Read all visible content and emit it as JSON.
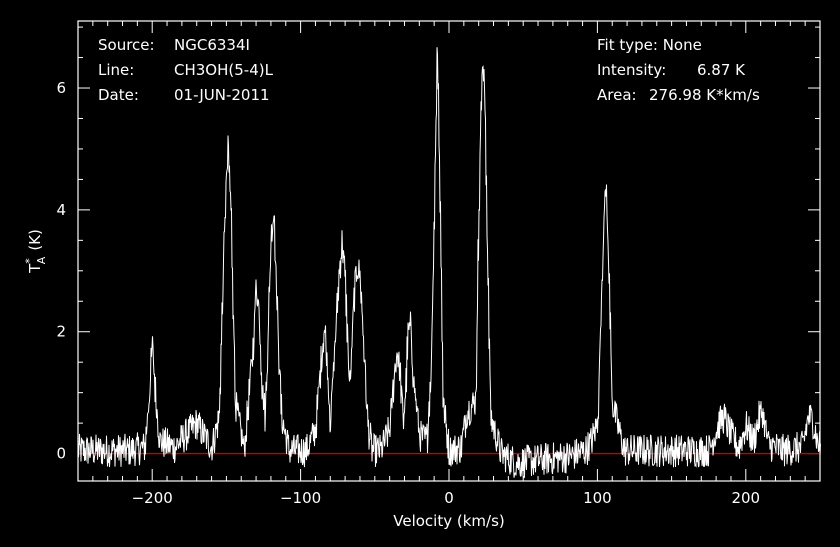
{
  "header": {
    "source_label": "Source:",
    "source_value": "NGC6334I",
    "line_label": "Line:",
    "line_value": "CH3OH(5-4)L",
    "date_label": "Date:",
    "date_value": "01-JUN-2011",
    "fit_label": "Fit type:",
    "fit_value": "None",
    "intensity_label": "Intensity:",
    "intensity_value": "6.87 K",
    "area_label": "Area:",
    "area_value": "276.98 K*km/s"
  },
  "colors": {
    "background": "#000000",
    "axes": "#ffffff",
    "spectrum": "#ffffff",
    "baseline": "#cc0000"
  },
  "chart_data": {
    "type": "line",
    "xlabel": "Velocity (km/s)",
    "ylabel_main": "T",
    "ylabel_sup": "*",
    "ylabel_sub": "A",
    "ylabel_unit": "(K)",
    "xlim": [
      -250,
      250
    ],
    "ylim": [
      -0.45,
      7.1
    ],
    "xticks": [
      -200,
      -100,
      0,
      100,
      200
    ],
    "xtick_labels": [
      "−200",
      "−100",
      "0",
      "100",
      "200"
    ],
    "yticks": [
      0,
      2,
      4,
      6
    ],
    "ytick_labels": [
      "0",
      "2",
      "4",
      "6"
    ],
    "baseline_y": 0,
    "series": [
      {
        "x": [
          -250,
          -215,
          -205,
          -202,
          -200,
          -198,
          -195,
          -185,
          -172,
          -170,
          -168,
          -160,
          -155,
          -151,
          -149,
          -147,
          -144,
          -138,
          -132,
          -130,
          -128,
          -126,
          -124,
          -122,
          -120,
          -118,
          -116,
          -113,
          -108,
          -96,
          -90,
          -86,
          -84,
          -82,
          -80,
          -77,
          -74,
          -72,
          -70,
          -67,
          -64,
          -62,
          -60,
          -58,
          -55,
          -52,
          -46,
          -40,
          -37,
          -35,
          -33,
          -31,
          -29,
          -28,
          -26,
          -24,
          -20,
          -15,
          -12,
          -10,
          -8,
          -6,
          -4,
          0,
          8,
          12,
          16,
          18,
          20,
          22,
          24,
          26,
          28,
          35,
          45,
          80,
          92,
          96,
          100,
          103,
          105,
          107,
          110,
          118,
          175,
          182,
          185,
          190,
          195,
          200,
          205,
          209,
          211,
          215,
          225,
          238,
          242,
          245,
          248,
          250
        ],
        "y": [
          0.05,
          0.05,
          0.1,
          1.0,
          1.8,
          1.0,
          0.2,
          0.1,
          0.45,
          0.5,
          0.4,
          0.1,
          0.6,
          4.0,
          5.0,
          4.0,
          0.8,
          0.05,
          1.8,
          2.8,
          2.3,
          1.1,
          0.6,
          2.0,
          3.6,
          4.0,
          2.4,
          0.6,
          0.05,
          0.05,
          0.4,
          1.6,
          2.1,
          1.4,
          0.5,
          1.8,
          3.0,
          3.5,
          2.8,
          1.0,
          2.6,
          3.1,
          2.9,
          2.0,
          0.5,
          0.05,
          0.05,
          0.4,
          1.3,
          1.7,
          1.3,
          0.5,
          1.2,
          1.9,
          2.1,
          1.2,
          0.3,
          0.2,
          1.5,
          4.0,
          6.8,
          4.0,
          0.8,
          0.05,
          0.1,
          0.7,
          0.8,
          0.9,
          4.0,
          6.3,
          6.0,
          3.0,
          0.6,
          0.0,
          -0.15,
          -0.05,
          0.05,
          0.2,
          0.5,
          2.8,
          4.6,
          3.5,
          0.8,
          0.05,
          0.05,
          0.5,
          0.6,
          0.3,
          0.1,
          0.45,
          0.2,
          0.6,
          0.7,
          0.15,
          0.05,
          0.1,
          0.6,
          0.55,
          0.2,
          0.1
        ]
      }
    ]
  }
}
